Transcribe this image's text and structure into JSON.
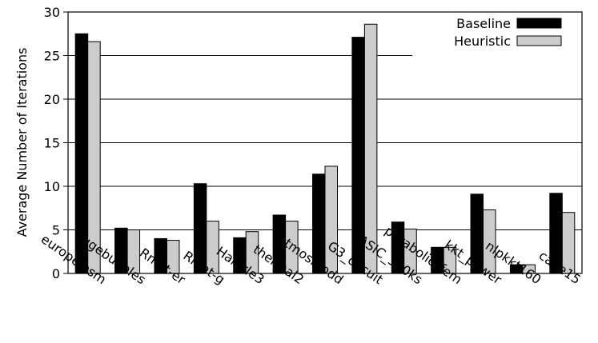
{
  "chart_data": {
    "type": "bar",
    "title": "",
    "xlabel": "",
    "ylabel": "Average Number of Iterations",
    "ylim": [
      0,
      30
    ],
    "yticks": [
      0,
      5,
      10,
      15,
      20,
      25,
      30
    ],
    "grid": "horizontal",
    "legend_position": "top-right",
    "categories": [
      "europe.osm",
      "hugebubbles",
      "Rmat-er",
      "Rmat-g",
      "Hamrle3",
      "thermal2",
      "atmosmodd",
      "G3_circuit",
      "ASIC_320ks",
      "parabolic_fem",
      "kkt_power",
      "nlpkkt160",
      "cage15"
    ],
    "series": [
      {
        "name": "Baseline",
        "color": "#000000",
        "values": [
          27.5,
          5.2,
          4.0,
          10.3,
          4.1,
          6.7,
          11.4,
          27.1,
          5.9,
          3.0,
          9.1,
          1.0,
          9.2
        ]
      },
      {
        "name": "Heuristic",
        "color": "#cccccc",
        "values": [
          26.6,
          5.0,
          3.8,
          6.0,
          4.8,
          6.0,
          12.3,
          28.6,
          5.1,
          3.0,
          7.3,
          1.0,
          7.0
        ]
      }
    ]
  }
}
